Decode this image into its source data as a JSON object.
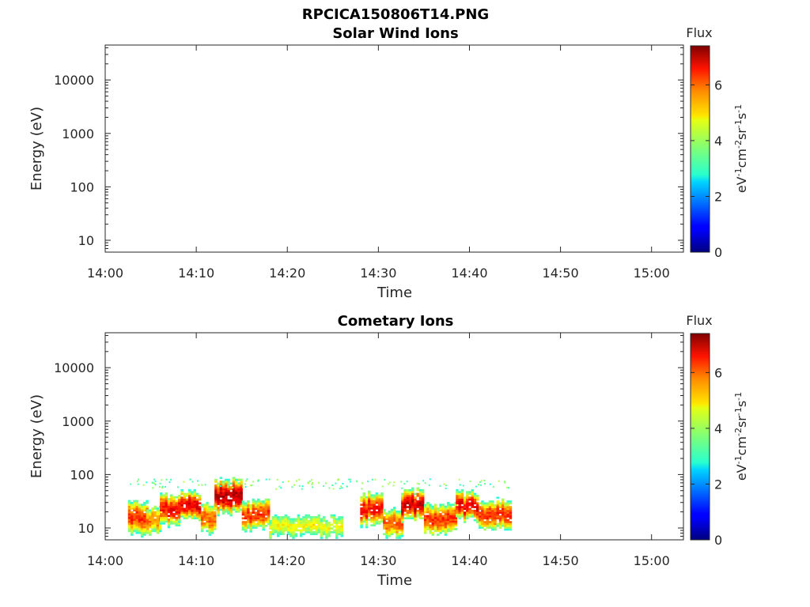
{
  "figure": {
    "title": "RPCICA150806T14.PNG"
  },
  "colorbar": {
    "label": "Flux",
    "units_parts": [
      "eV",
      "-1",
      "cm",
      "-2",
      "sr",
      "-1",
      "s",
      "-1"
    ],
    "ticks": [
      "0",
      "2",
      "4",
      "6"
    ],
    "range": [
      0,
      7.4
    ],
    "colormap": "jet"
  },
  "chart_data": [
    {
      "type": "heatmap",
      "title": "Solar Wind Ions",
      "xlabel": "Time",
      "ylabel": "Energy (eV)",
      "x_ticks": [
        "14:00",
        "14:10",
        "14:20",
        "14:30",
        "14:40",
        "14:50",
        "15:00"
      ],
      "y_ticks": [
        "10",
        "100",
        "1000",
        "10000"
      ],
      "y_scale": "log",
      "ylim": [
        6,
        45000
      ],
      "xlim_minutes_after_14_00": [
        0,
        63.5
      ],
      "segments": []
    },
    {
      "type": "heatmap",
      "title": "Cometary Ions",
      "xlabel": "Time",
      "ylabel": "Energy (eV)",
      "x_ticks": [
        "14:00",
        "14:10",
        "14:20",
        "14:30",
        "14:40",
        "14:50",
        "15:00"
      ],
      "y_ticks": [
        "10",
        "100",
        "1000",
        "10000"
      ],
      "y_scale": "log",
      "ylim": [
        6,
        45000
      ],
      "xlim_minutes_after_14_00": [
        0,
        63.5
      ],
      "data_range_minutes": [
        2.5,
        44.5
      ],
      "segments": [
        {
          "t": [
            2.5,
            4.5
          ],
          "e": [
            8,
            30
          ],
          "peak": 6.5
        },
        {
          "t": [
            4.5,
            6.0
          ],
          "e": [
            8,
            22
          ],
          "peak": 6.0
        },
        {
          "t": [
            6.0,
            8.0
          ],
          "e": [
            12,
            38
          ],
          "peak": 6.8
        },
        {
          "t": [
            8.0,
            10.5
          ],
          "e": [
            15,
            40
          ],
          "peak": 7.0
        },
        {
          "t": [
            10.5,
            12.0
          ],
          "e": [
            8,
            25
          ],
          "peak": 6.2
        },
        {
          "t": [
            12.0,
            15.0
          ],
          "e": [
            20,
            70
          ],
          "peak": 7.4
        },
        {
          "t": [
            15.0,
            18.0
          ],
          "e": [
            10,
            30
          ],
          "peak": 6.5
        },
        {
          "t": [
            18.0,
            26.0
          ],
          "e": [
            7,
            15
          ],
          "peak": 5.0
        },
        {
          "t": [
            28.0,
            30.5
          ],
          "e": [
            12,
            40
          ],
          "peak": 6.8
        },
        {
          "t": [
            30.5,
            32.5
          ],
          "e": [
            7,
            20
          ],
          "peak": 6.2
        },
        {
          "t": [
            32.5,
            35.0
          ],
          "e": [
            15,
            45
          ],
          "peak": 7.2
        },
        {
          "t": [
            35.0,
            38.5
          ],
          "e": [
            8,
            25
          ],
          "peak": 6.5
        },
        {
          "t": [
            38.5,
            41.0
          ],
          "e": [
            15,
            40
          ],
          "peak": 7.0
        },
        {
          "t": [
            41.0,
            44.5
          ],
          "e": [
            10,
            30
          ],
          "peak": 6.5
        }
      ]
    }
  ]
}
